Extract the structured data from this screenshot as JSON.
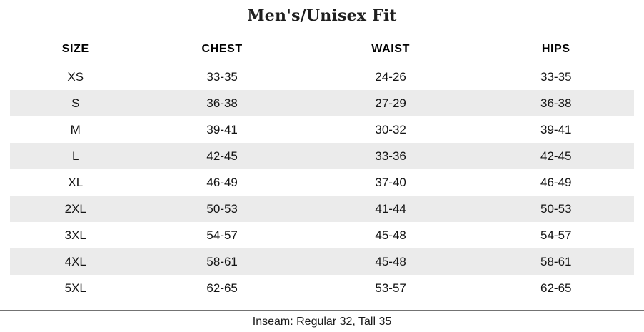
{
  "title": "Men's/Unisex Fit",
  "table": {
    "columns": [
      "SIZE",
      "CHEST",
      "WAIST",
      "HIPS"
    ],
    "rows": [
      [
        "XS",
        "33-35",
        "24-26",
        "33-35"
      ],
      [
        "S",
        "36-38",
        "27-29",
        "36-38"
      ],
      [
        "M",
        "39-41",
        "30-32",
        "39-41"
      ],
      [
        "L",
        "42-45",
        "33-36",
        "42-45"
      ],
      [
        "XL",
        "46-49",
        "37-40",
        "46-49"
      ],
      [
        "2XL",
        "50-53",
        "41-44",
        "50-53"
      ],
      [
        "3XL",
        "54-57",
        "45-48",
        "54-57"
      ],
      [
        "4XL",
        "58-61",
        "45-48",
        "58-61"
      ],
      [
        "5XL",
        "62-65",
        "53-57",
        "62-65"
      ]
    ]
  },
  "footer": {
    "note": "Inseam: Regular 32, Tall 35"
  },
  "colors": {
    "stripe": "#ebebeb",
    "divider": "#737373",
    "text": "#141414"
  }
}
